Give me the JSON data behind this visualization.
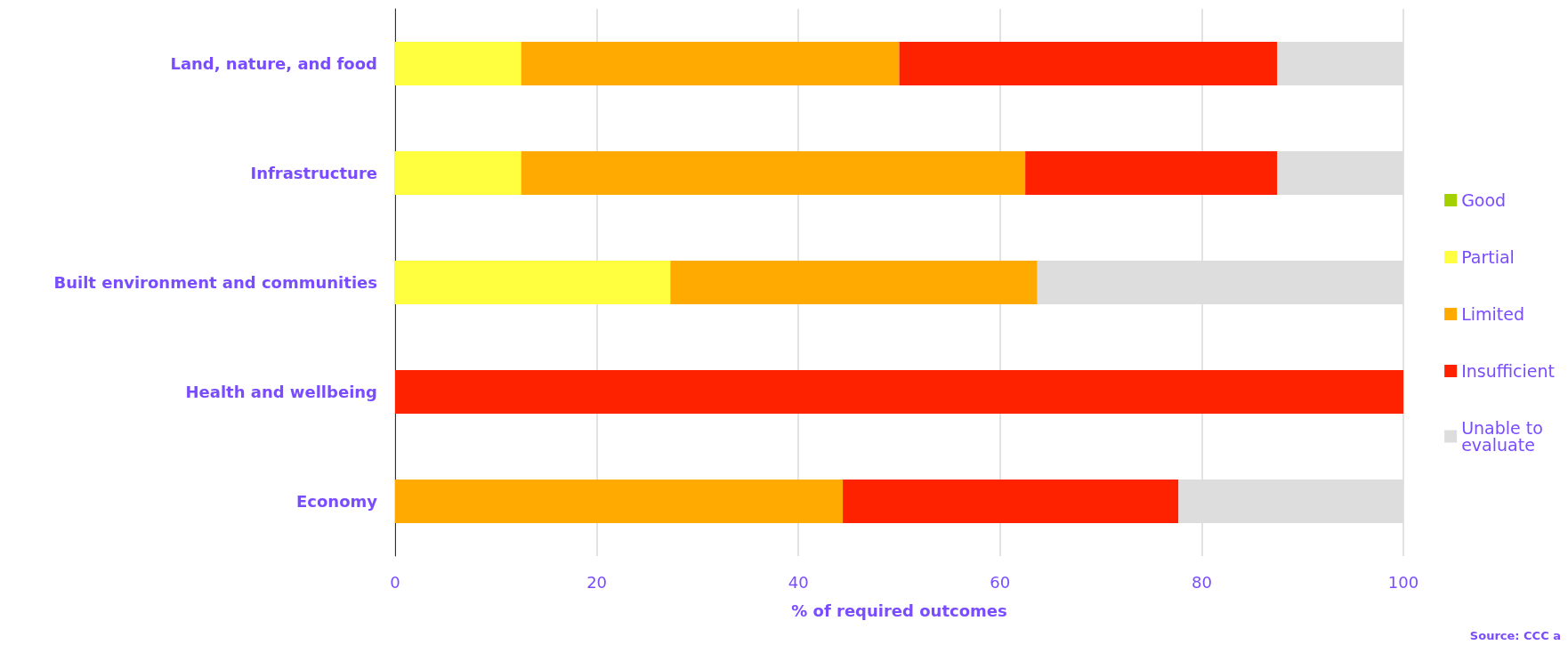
{
  "chart_data": {
    "type": "bar",
    "orientation": "horizontal",
    "stacked": true,
    "categories": [
      "Land, nature, and food",
      "Infrastructure",
      "Built environment and communities",
      "Health and wellbeing",
      "Economy"
    ],
    "series": [
      {
        "name": "Good",
        "color": "#a3d000",
        "values": [
          0,
          0,
          0,
          0,
          0
        ]
      },
      {
        "name": "Partial",
        "color": "#ffff40",
        "values": [
          12.5,
          12.5,
          27.3,
          0,
          0
        ]
      },
      {
        "name": "Limited",
        "color": "#ffaa00",
        "values": [
          37.5,
          50,
          36.4,
          0,
          44.4
        ]
      },
      {
        "name": "Insufficient",
        "color": "#ff2200",
        "values": [
          37.5,
          25,
          0,
          100,
          33.3
        ]
      },
      {
        "name": "Unable to evaluate",
        "color": "#dddddd",
        "values": [
          12.5,
          12.5,
          36.3,
          0,
          22.3
        ]
      }
    ],
    "xlabel": "% of required outcomes",
    "xlim": [
      0,
      100
    ],
    "xticks": [
      0,
      20,
      40,
      60,
      80,
      100
    ],
    "grid": "x",
    "legend": "right",
    "annotations": [
      "Source: CCC a"
    ]
  }
}
